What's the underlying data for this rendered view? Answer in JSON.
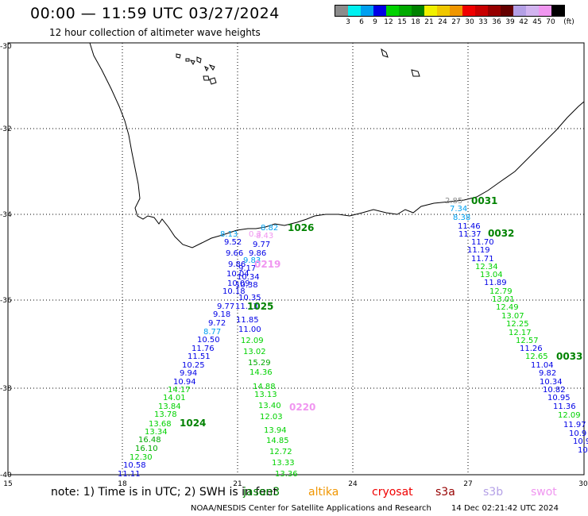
{
  "title": "00:00 — 11:59 UTC 03/27/2024",
  "subtitle": "12 hour collection of altimeter wave heights",
  "color_scale": {
    "unit": "(ft)",
    "colors": [
      "#8c8c8c",
      "#00f0f0",
      "#00a0f0",
      "#0000e6",
      "#00d200",
      "#00aa00",
      "#008200",
      "#f0f000",
      "#f0c800",
      "#f09600",
      "#f00000",
      "#c80000",
      "#960000",
      "#640000",
      "#b4a0e6",
      "#d2b4f0",
      "#f096f0",
      "#000000"
    ],
    "labels": [
      "3",
      "6",
      "9",
      "12",
      "15",
      "18",
      "21",
      "24",
      "27",
      "30",
      "33",
      "36",
      "39",
      "42",
      "45",
      "70"
    ]
  },
  "axes": {
    "lat_ticks": [
      "-30",
      "-32",
      "-34",
      "-36",
      "-38",
      "-40"
    ],
    "lon_ticks": [
      "15",
      "18",
      "21",
      "24",
      "27",
      "30"
    ]
  },
  "pass_labels": [
    {
      "text": "1026",
      "color": "#008200"
    },
    {
      "text": "0219",
      "color": "#f096f0"
    },
    {
      "text": "1025",
      "color": "#008200"
    },
    {
      "text": "1024",
      "color": "#008200"
    },
    {
      "text": "0220",
      "color": "#f096f0"
    },
    {
      "text": "0031",
      "color": "#008200"
    },
    {
      "text": "0032",
      "color": "#008200"
    },
    {
      "text": "0033",
      "color": "#008200"
    }
  ],
  "wave_labels": [
    {
      "text": "8.13",
      "color": "#00a0f0"
    },
    {
      "text": "9.52",
      "color": "#0000e6"
    },
    {
      "text": "9.66",
      "color": "#0000e6"
    },
    {
      "text": "9.86",
      "color": "#0000e6"
    },
    {
      "text": "10.04",
      "color": "#0000e6"
    },
    {
      "text": "10.09",
      "color": "#0000e6"
    },
    {
      "text": "10.18",
      "color": "#0000e6"
    },
    {
      "text": "9.77",
      "color": "#0000e6"
    },
    {
      "text": "9.18",
      "color": "#0000e6"
    },
    {
      "text": "9.72",
      "color": "#0000e6"
    },
    {
      "text": "8.77",
      "color": "#00a0f0"
    },
    {
      "text": "10.50",
      "color": "#0000e6"
    },
    {
      "text": "11.76",
      "color": "#0000e6"
    },
    {
      "text": "11.51",
      "color": "#0000e6"
    },
    {
      "text": "10.25",
      "color": "#0000e6"
    },
    {
      "text": "9.94",
      "color": "#0000e6"
    },
    {
      "text": "10.94",
      "color": "#0000e6"
    },
    {
      "text": "14.17",
      "color": "#00d200"
    },
    {
      "text": "14.01",
      "color": "#00d200"
    },
    {
      "text": "13.84",
      "color": "#00d200"
    },
    {
      "text": "13.78",
      "color": "#00d200"
    },
    {
      "text": "13.68",
      "color": "#00d200"
    },
    {
      "text": "13.34",
      "color": "#00d200"
    },
    {
      "text": "16.48",
      "color": "#00aa00"
    },
    {
      "text": "16.10",
      "color": "#00aa00"
    },
    {
      "text": "12.30",
      "color": "#00d200"
    },
    {
      "text": "10.58",
      "color": "#0000e6"
    },
    {
      "text": "11.11",
      "color": "#0000e6"
    },
    {
      "text": "8.82",
      "color": "#00a0f0"
    },
    {
      "text": "9.77",
      "color": "#0000e6"
    },
    {
      "text": "9.86",
      "color": "#0000e6"
    },
    {
      "text": "9.83",
      "color": "#00a0f0"
    },
    {
      "text": "9.17",
      "color": "#0000e6"
    },
    {
      "text": "10.34",
      "color": "#0000e6"
    },
    {
      "text": "10.38",
      "color": "#0000e6"
    },
    {
      "text": "10.35",
      "color": "#0000e6"
    },
    {
      "text": "11.13",
      "color": "#0000e6"
    },
    {
      "text": "11.85",
      "color": "#0000e6"
    },
    {
      "text": "11.00",
      "color": "#0000e6"
    },
    {
      "text": "12.09",
      "color": "#00d200"
    },
    {
      "text": "13.02",
      "color": "#00d200"
    },
    {
      "text": "15.29",
      "color": "#00aa00"
    },
    {
      "text": "14.36",
      "color": "#00d200"
    },
    {
      "text": "14.88",
      "color": "#00d200"
    },
    {
      "text": "13.13",
      "color": "#00d200"
    },
    {
      "text": "13.40",
      "color": "#00d200"
    },
    {
      "text": "12.03",
      "color": "#00d200"
    },
    {
      "text": "13.94",
      "color": "#00d200"
    },
    {
      "text": "14.85",
      "color": "#00d200"
    },
    {
      "text": "12.72",
      "color": "#00d200"
    },
    {
      "text": "13.33",
      "color": "#00d200"
    },
    {
      "text": "13.36",
      "color": "#00d200"
    },
    {
      "text": "0.3",
      "color": "#f096f0"
    },
    {
      "text": "8.43",
      "color": "#f096f0"
    },
    {
      "text": "2.85",
      "color": "#8c8c8c"
    },
    {
      "text": "7.34",
      "color": "#00a0f0"
    },
    {
      "text": "8.38",
      "color": "#00a0f0"
    },
    {
      "text": "11.46",
      "color": "#0000e6"
    },
    {
      "text": "11.37",
      "color": "#0000e6"
    },
    {
      "text": "11.70",
      "color": "#0000e6"
    },
    {
      "text": "11.19",
      "color": "#0000e6"
    },
    {
      "text": "11.71",
      "color": "#0000e6"
    },
    {
      "text": "12.34",
      "color": "#00d200"
    },
    {
      "text": "13.04",
      "color": "#00d200"
    },
    {
      "text": "11.89",
      "color": "#0000e6"
    },
    {
      "text": "12.79",
      "color": "#00d200"
    },
    {
      "text": "13.01",
      "color": "#00d200"
    },
    {
      "text": "12.49",
      "color": "#00d200"
    },
    {
      "text": "13.07",
      "color": "#00d200"
    },
    {
      "text": "12.25",
      "color": "#00d200"
    },
    {
      "text": "12.17",
      "color": "#00d200"
    },
    {
      "text": "12.57",
      "color": "#00d200"
    },
    {
      "text": "11.26",
      "color": "#0000e6"
    },
    {
      "text": "12.65",
      "color": "#00d200"
    },
    {
      "text": "11.04",
      "color": "#0000e6"
    },
    {
      "text": "9.82",
      "color": "#0000e6"
    },
    {
      "text": "10.34",
      "color": "#0000e6"
    },
    {
      "text": "10.82",
      "color": "#0000e6"
    },
    {
      "text": "10.95",
      "color": "#0000e6"
    },
    {
      "text": "11.36",
      "color": "#0000e6"
    },
    {
      "text": "12.09",
      "color": "#00d200"
    },
    {
      "text": "11.97",
      "color": "#0000e6"
    },
    {
      "text": "10.9",
      "color": "#0000e6"
    },
    {
      "text": "10.9",
      "color": "#0000e6"
    },
    {
      "text": "10.",
      "color": "#0000e6"
    }
  ],
  "note": "note: 1) Time is in UTC; 2) SWH is in feet",
  "legend": [
    {
      "name": "jason3",
      "color": "#008200"
    },
    {
      "name": "altika",
      "color": "#f09600"
    },
    {
      "name": "cryosat",
      "color": "#f00000"
    },
    {
      "name": "s3a",
      "color": "#960000"
    },
    {
      "name": "s3b",
      "color": "#b4a0e6"
    },
    {
      "name": "swot",
      "color": "#f096f0"
    }
  ],
  "footer": {
    "credit": "NOAA/NESDIS Center for Satellite Applications and Research",
    "date": "14 Dec 02:21:42 UTC 2024"
  }
}
